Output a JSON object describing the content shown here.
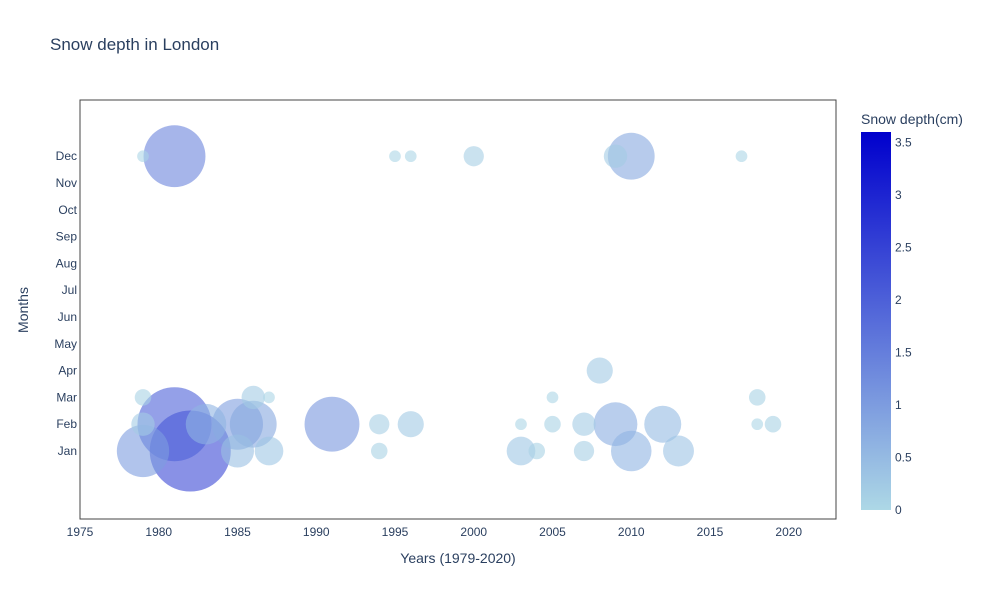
{
  "chart_data": {
    "type": "scatter",
    "title": "Snow depth in London",
    "xlabel": "Years (1979-2020)",
    "ylabel": "Months",
    "xlim": [
      1975,
      2023
    ],
    "x_ticks": [
      1975,
      1980,
      1985,
      1990,
      1995,
      2000,
      2005,
      2010,
      2015,
      2020
    ],
    "y_categories": [
      "Jan",
      "Feb",
      "Mar",
      "Apr",
      "May",
      "Jun",
      "Jul",
      "Aug",
      "Sep",
      "Oct",
      "Nov",
      "Dec"
    ],
    "grid": false,
    "colorbar": {
      "title": "Snow depth(cm)",
      "min": 0,
      "max": 3.6,
      "ticks": [
        0,
        0.5,
        1,
        1.5,
        2,
        2.5,
        3,
        3.5
      ],
      "colors": [
        "#add8e6",
        "#0000cd"
      ]
    },
    "points": [
      {
        "year": 1979,
        "month": "Jan",
        "depth": 1.0
      },
      {
        "year": 1979,
        "month": "Feb",
        "depth": 0.2
      },
      {
        "year": 1979,
        "month": "Mar",
        "depth": 0.1
      },
      {
        "year": 1979,
        "month": "Dec",
        "depth": 0.05
      },
      {
        "year": 1981,
        "month": "Feb",
        "depth": 2.0
      },
      {
        "year": 1981,
        "month": "Dec",
        "depth": 1.4
      },
      {
        "year": 1982,
        "month": "Jan",
        "depth": 2.4
      },
      {
        "year": 1983,
        "month": "Feb",
        "depth": 0.6
      },
      {
        "year": 1985,
        "month": "Jan",
        "depth": 0.4
      },
      {
        "year": 1985,
        "month": "Feb",
        "depth": 0.95
      },
      {
        "year": 1986,
        "month": "Feb",
        "depth": 0.8
      },
      {
        "year": 1986,
        "month": "Mar",
        "depth": 0.2
      },
      {
        "year": 1987,
        "month": "Jan",
        "depth": 0.3
      },
      {
        "year": 1987,
        "month": "Mar",
        "depth": 0.05
      },
      {
        "year": 1991,
        "month": "Feb",
        "depth": 1.1
      },
      {
        "year": 1994,
        "month": "Jan",
        "depth": 0.1
      },
      {
        "year": 1994,
        "month": "Feb",
        "depth": 0.15
      },
      {
        "year": 1995,
        "month": "Dec",
        "depth": 0.05
      },
      {
        "year": 1996,
        "month": "Feb",
        "depth": 0.25
      },
      {
        "year": 1996,
        "month": "Dec",
        "depth": 0.05
      },
      {
        "year": 2000,
        "month": "Dec",
        "depth": 0.15
      },
      {
        "year": 2003,
        "month": "Jan",
        "depth": 0.3
      },
      {
        "year": 2003,
        "month": "Feb",
        "depth": 0.05
      },
      {
        "year": 2004,
        "month": "Jan",
        "depth": 0.1
      },
      {
        "year": 2005,
        "month": "Feb",
        "depth": 0.1
      },
      {
        "year": 2005,
        "month": "Mar",
        "depth": 0.05
      },
      {
        "year": 2007,
        "month": "Jan",
        "depth": 0.15
      },
      {
        "year": 2007,
        "month": "Feb",
        "depth": 0.2
      },
      {
        "year": 2008,
        "month": "Apr",
        "depth": 0.25
      },
      {
        "year": 2009,
        "month": "Feb",
        "depth": 0.7
      },
      {
        "year": 2009,
        "month": "Dec",
        "depth": 0.2
      },
      {
        "year": 2010,
        "month": "Jan",
        "depth": 0.6
      },
      {
        "year": 2010,
        "month": "Dec",
        "depth": 0.8
      },
      {
        "year": 2012,
        "month": "Feb",
        "depth": 0.5
      },
      {
        "year": 2013,
        "month": "Jan",
        "depth": 0.35
      },
      {
        "year": 2017,
        "month": "Dec",
        "depth": 0.05
      },
      {
        "year": 2018,
        "month": "Feb",
        "depth": 0.05
      },
      {
        "year": 2018,
        "month": "Mar",
        "depth": 0.1
      },
      {
        "year": 2019,
        "month": "Feb",
        "depth": 0.1
      }
    ]
  }
}
